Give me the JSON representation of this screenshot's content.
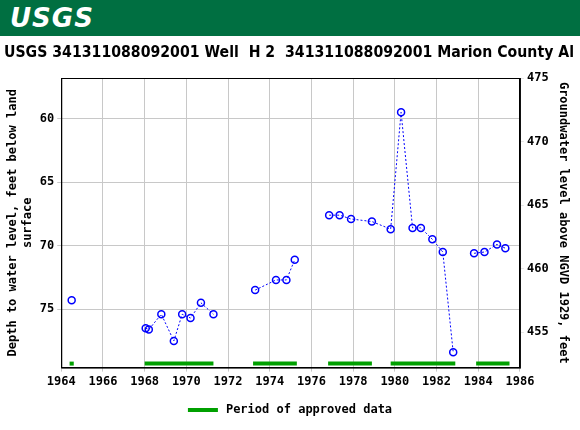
{
  "header": {
    "logo": "USGS"
  },
  "chart_data": {
    "type": "line",
    "title": "USGS 341311088092001 Well  H 2  341311088092001 Marion County Al",
    "y_label": [
      "Depth to water level, feet below land",
      "surface"
    ],
    "y2_label": "Groundwater level above NGVD 1929, feet",
    "x": [
      1964.5,
      1966,
      1968.05,
      1968.2,
      1968.8,
      1969.4,
      1969.8,
      1970.2,
      1970.7,
      1971.3,
      1972.3,
      1973.3,
      1974.3,
      1974.8,
      1975.2,
      1976,
      1976.85,
      1977.35,
      1977.9,
      1978.9,
      1979.8,
      1980.3,
      1980.85,
      1981.25,
      1981.8,
      1982.3,
      1982.8,
      1983.3,
      1983.8,
      1984.3,
      1984.9,
      1985.3
    ],
    "series": [
      {
        "color": "#0000ff",
        "marker": "circle",
        "line_style": "dotted",
        "values": [
          74.3,
          null,
          76.5,
          76.6,
          75.4,
          77.5,
          75.4,
          75.7,
          74.5,
          75.4,
          null,
          73.5,
          72.7,
          72.7,
          71.1,
          null,
          67.6,
          67.6,
          67.9,
          68.1,
          68.7,
          59.5,
          68.6,
          68.6,
          69.5,
          70.5,
          78.4,
          null,
          70.6,
          70.5,
          69.9,
          70.2
        ]
      }
    ],
    "approved_periods": {
      "name": "Period of approved data",
      "color": "#00a000",
      "ranges": [
        [
          1964.4,
          1964.6
        ],
        [
          1968.0,
          1971.3
        ],
        [
          1973.2,
          1975.3
        ],
        [
          1976.8,
          1978.9
        ],
        [
          1979.8,
          1982.9
        ],
        [
          1983.9,
          1985.5
        ]
      ]
    },
    "xlim": [
      1964,
      1986
    ],
    "xticks": [
      1964,
      1966,
      1968,
      1970,
      1972,
      1974,
      1976,
      1978,
      1980,
      1982,
      1984,
      1986
    ],
    "ylim": [
      79.6,
      56.8
    ],
    "yticks": [
      60,
      65,
      70,
      75
    ],
    "y2lim": [
      452.2,
      475
    ],
    "y2ticks": [
      455,
      460,
      465,
      470,
      475
    ],
    "grid": true
  }
}
